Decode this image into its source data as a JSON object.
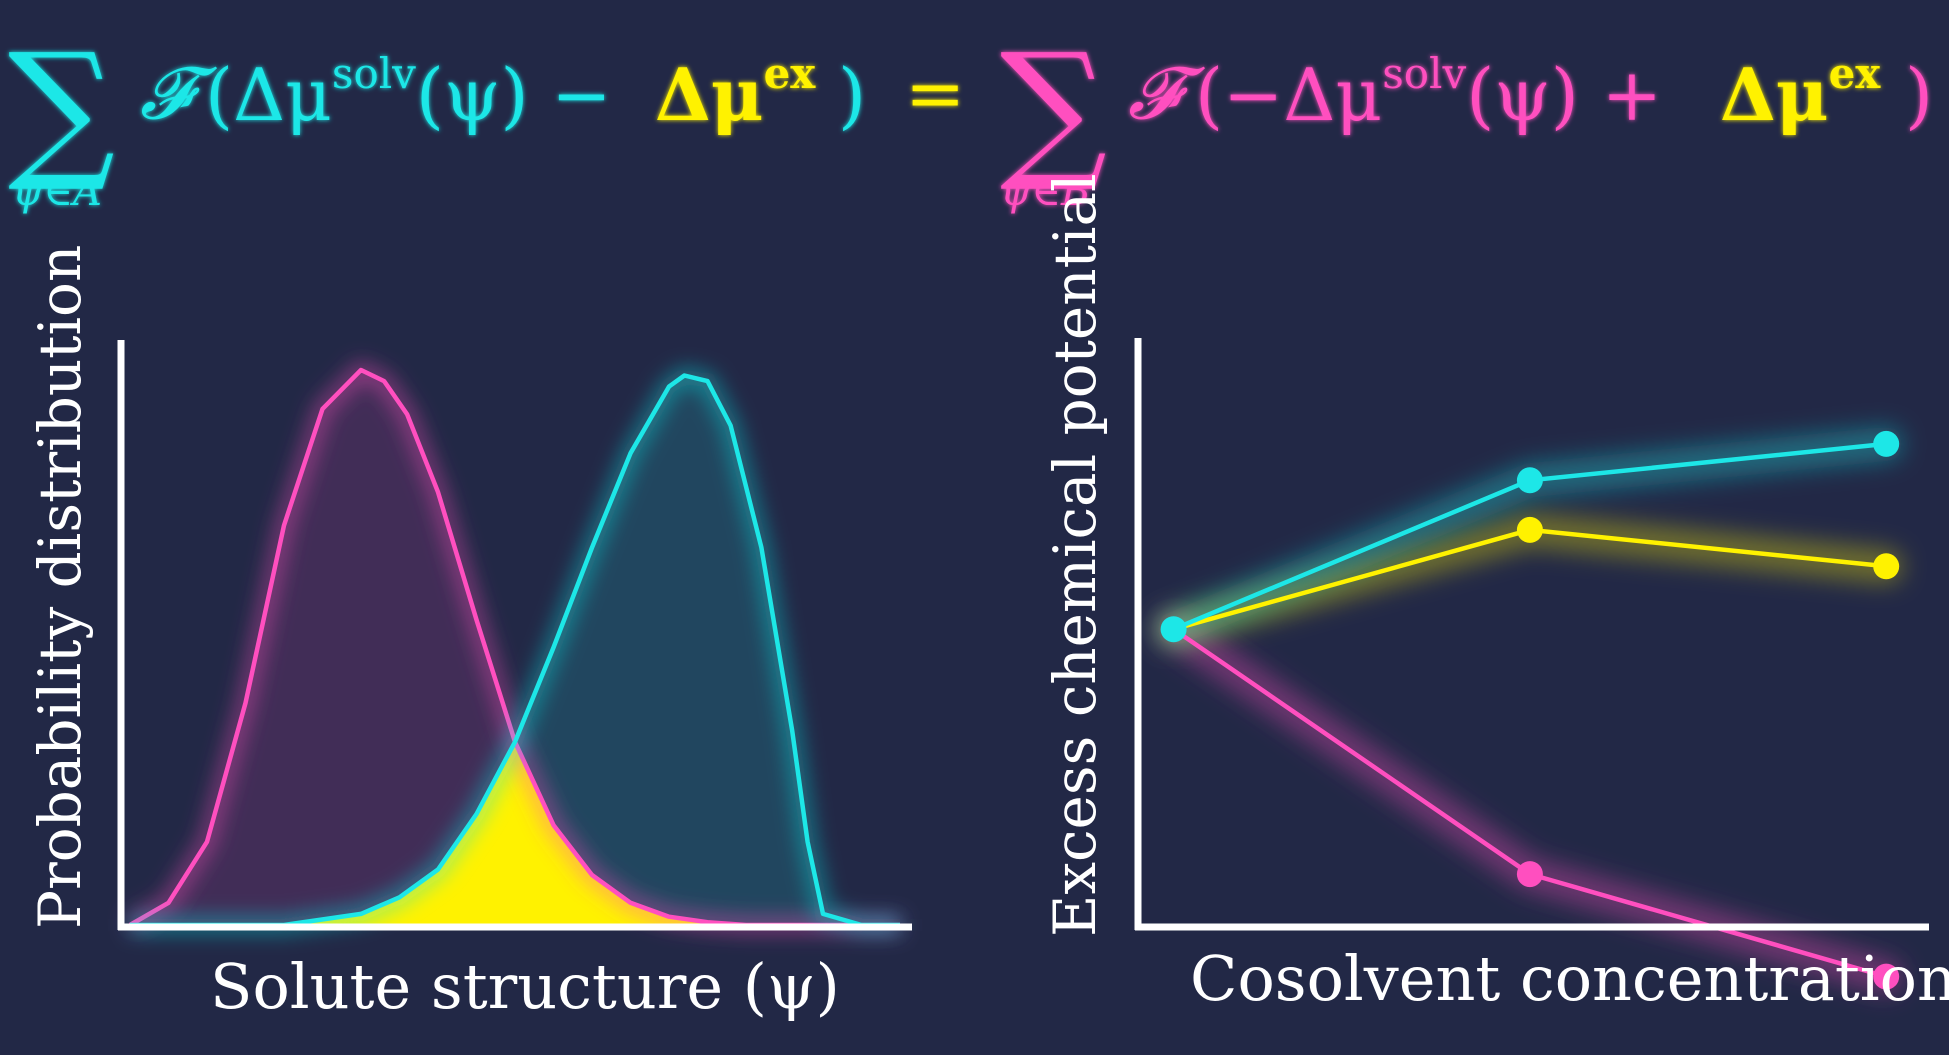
{
  "equation": {
    "sum": "∑",
    "lhs_subscript": "ψ∈A",
    "rhs_subscript": "ψ∈B",
    "functional": "𝓕",
    "lhs_solv": "(Δμ",
    "lhs_solv_sup": "solv",
    "lhs_arg": "(ψ) −",
    "lhs_ex": "Δμ",
    "lhs_ex_sup": "ex",
    "lhs_close": ")",
    "equals": "=",
    "rhs_open": "(",
    "rhs_solv": "−Δμ",
    "rhs_solv_sup": "solv",
    "rhs_arg": "(ψ) +",
    "rhs_ex": "Δμ",
    "rhs_ex_sup": "ex",
    "rhs_close": ")"
  },
  "colors": {
    "background": "#222846",
    "cyan": "#1de7e7",
    "magenta": "#ff4fbf",
    "yellow": "#fff200",
    "axis": "#ffffff"
  },
  "chart_data": [
    {
      "type": "area",
      "xlabel": "Solute structure (ψ)",
      "ylabel": "Probability distribution",
      "xlim": [
        0,
        1
      ],
      "ylim": [
        0,
        1
      ],
      "grid": false,
      "overlap_fill": "yellow",
      "series": [
        {
          "color": "magenta",
          "x": [
            0.0,
            0.05,
            0.1,
            0.15,
            0.2,
            0.25,
            0.3,
            0.33,
            0.36,
            0.4,
            0.45,
            0.5,
            0.55,
            0.6,
            0.65,
            0.7,
            0.75,
            0.8,
            0.85,
            0.9,
            1.0
          ],
          "values": [
            0.0,
            0.04,
            0.15,
            0.4,
            0.72,
            0.93,
            1.0,
            0.98,
            0.92,
            0.78,
            0.55,
            0.33,
            0.18,
            0.09,
            0.04,
            0.015,
            0.005,
            0.0,
            0.0,
            0.0,
            0.0
          ]
        },
        {
          "color": "cyan",
          "x": [
            0.0,
            0.1,
            0.2,
            0.3,
            0.35,
            0.4,
            0.45,
            0.5,
            0.55,
            0.6,
            0.65,
            0.7,
            0.72,
            0.75,
            0.78,
            0.82,
            0.86,
            0.88,
            0.9,
            0.95,
            1.0
          ],
          "values": [
            0.0,
            0.0,
            0.0,
            0.02,
            0.05,
            0.1,
            0.2,
            0.33,
            0.5,
            0.68,
            0.85,
            0.97,
            0.99,
            0.98,
            0.9,
            0.68,
            0.35,
            0.15,
            0.02,
            0.0,
            0.0
          ]
        }
      ]
    },
    {
      "type": "line",
      "xlabel": "Cosolvent concentration",
      "ylabel": "Excess chemical potential",
      "x": [
        0,
        1,
        2
      ],
      "xlim": [
        -0.1,
        2.12
      ],
      "ylim": [
        -0.45,
        0.44
      ],
      "grid": false,
      "series": [
        {
          "color": "cyan",
          "values": [
            0.0,
            0.225,
            0.28
          ]
        },
        {
          "color": "yellow",
          "values": [
            0.0,
            0.15,
            0.095
          ]
        },
        {
          "color": "magenta",
          "values": [
            0.0,
            -0.37,
            -0.525
          ]
        }
      ]
    }
  ]
}
